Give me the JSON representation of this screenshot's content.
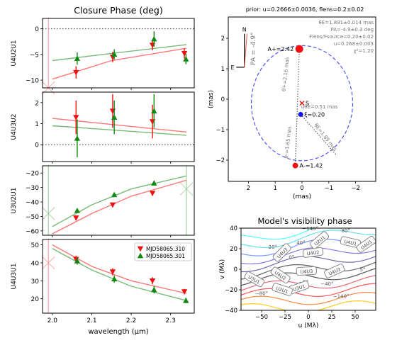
{
  "chart_data": [
    {
      "type": "scatter",
      "title": "Closure Phase (deg)",
      "panel": "U4U2U1",
      "ylabel": "U4U2U1",
      "ylim": [
        -11.5,
        2
      ],
      "xlim": [
        1.975,
        2.36
      ],
      "yticks": [
        0,
        -5,
        -10
      ],
      "xticks": [],
      "reference_line": 0,
      "series": [
        {
          "name": "MJD58065.310",
          "x": [
            2.06,
            2.153,
            2.254,
            2.335
          ],
          "y": [
            -8.5,
            -5.5,
            -3.2,
            -4.8
          ],
          "err": [
            1.2,
            1.0,
            1.0,
            1.0
          ],
          "color": "#ee1111",
          "marker": "triangle-down"
        },
        {
          "name": "MJD58065.301",
          "x": [
            2.063,
            2.157,
            2.258,
            2.339
          ],
          "y": [
            -5.8,
            -5.0,
            -2.0,
            -5.9
          ],
          "err": [
            1.2,
            1.0,
            1.5,
            1.0
          ],
          "color": "#118811",
          "marker": "triangle-up"
        }
      ],
      "models": [
        {
          "x": [
            2.0,
            2.15,
            2.34
          ],
          "y": [
            -9.8,
            -6.2,
            -3.8
          ],
          "color": "#ff7777"
        },
        {
          "x": [
            2.0,
            2.15,
            2.34
          ],
          "y": [
            -6.2,
            -4.8,
            -3.1
          ],
          "color": "#77bb77"
        }
      ],
      "edge_markers": [
        {
          "x": 1.99,
          "y": -11.5,
          "color": "#ff9999"
        }
      ]
    },
    {
      "type": "scatter",
      "panel": "U4U3U2",
      "ylabel": "U4U3U2",
      "ylim": [
        -0.8,
        2.5
      ],
      "xlim": [
        1.975,
        2.36
      ],
      "yticks": [
        2,
        1,
        0
      ],
      "xticks": [],
      "reference_line": 0,
      "series": [
        {
          "name": "MJD58065.310",
          "x": [
            2.06,
            2.153,
            2.254
          ],
          "y": [
            1.3,
            1.6,
            1.1
          ],
          "err": [
            0.8,
            0.8,
            0.8
          ],
          "color": "#ee1111",
          "marker": "triangle-down"
        },
        {
          "name": "MJD58065.301",
          "x": [
            2.063,
            2.157,
            2.258
          ],
          "y": [
            0.3,
            1.3,
            1.6
          ],
          "err": [
            0.9,
            0.8,
            0.8
          ],
          "color": "#118811",
          "marker": "triangle-up"
        }
      ],
      "models": [
        {
          "x": [
            2.0,
            2.34
          ],
          "y": [
            1.25,
            0.6
          ],
          "color": "#ff7777"
        },
        {
          "x": [
            2.0,
            2.34
          ],
          "y": [
            0.9,
            0.45
          ],
          "color": "#77bb77"
        }
      ],
      "edge_markers": []
    },
    {
      "type": "scatter",
      "panel": "U3U2U1",
      "ylabel": "U3U2U1",
      "ylim": [
        -63,
        -15
      ],
      "xlim": [
        1.975,
        2.36
      ],
      "yticks": [
        -20,
        -30,
        -40,
        -50,
        -60
      ],
      "xticks": [],
      "reference_line": null,
      "series": [
        {
          "name": "MJD58065.310",
          "x": [
            2.06,
            2.153,
            2.254
          ],
          "y": [
            -51,
            -42,
            -34
          ],
          "err": [
            1.5,
            1.5,
            1.5
          ],
          "color": "#ee1111",
          "marker": "triangle-down"
        },
        {
          "name": "MJD58065.301",
          "x": [
            2.063,
            2.157,
            2.258
          ],
          "y": [
            -46,
            -35,
            -27
          ],
          "err": [
            1.5,
            1.5,
            1.5
          ],
          "color": "#118811",
          "marker": "triangle-up"
        }
      ],
      "models": [
        {
          "x": [
            2.0,
            2.1,
            2.2,
            2.34
          ],
          "y": [
            -62,
            -48,
            -36,
            -25
          ],
          "color": "#ff7777"
        },
        {
          "x": [
            2.0,
            2.1,
            2.2,
            2.34
          ],
          "y": [
            -57,
            -42,
            -31,
            -22
          ],
          "color": "#77bb77"
        }
      ],
      "edge_markers": [
        {
          "x": 1.99,
          "y": -48,
          "color": "#99cc99"
        },
        {
          "x": 2.34,
          "y": -31,
          "color": "#99cc99"
        }
      ]
    },
    {
      "type": "scatter",
      "panel": "U4U3U1",
      "ylabel": "U4U3U1",
      "ylim": [
        12,
        53
      ],
      "xlim": [
        1.975,
        2.36
      ],
      "yticks": [
        50,
        40,
        30,
        20
      ],
      "xticks": [
        2.0,
        2.1,
        2.2,
        2.3
      ],
      "xlabel": "wavelength (μm)",
      "reference_line": null,
      "legend": {
        "position": "upper right",
        "entries": [
          "MJD58065.310",
          "MJD58065.301"
        ]
      },
      "series": [
        {
          "name": "MJD58065.310",
          "x": [
            2.06,
            2.153,
            2.254,
            2.335
          ],
          "y": [
            42,
            35,
            30,
            24
          ],
          "err": [
            2,
            2,
            2,
            1.5
          ],
          "color": "#ee1111",
          "marker": "triangle-down"
        },
        {
          "name": "MJD58065.301",
          "x": [
            2.063,
            2.157,
            2.258,
            2.339
          ],
          "y": [
            41,
            31,
            25,
            19
          ],
          "err": [
            2,
            2,
            2,
            1.5
          ],
          "color": "#118811",
          "marker": "triangle-up"
        }
      ],
      "models": [
        {
          "x": [
            2.0,
            2.1,
            2.2,
            2.34
          ],
          "y": [
            50,
            38,
            30,
            23
          ],
          "color": "#ff7777"
        },
        {
          "x": [
            2.0,
            2.1,
            2.2,
            2.34
          ],
          "y": [
            48,
            36,
            27,
            19
          ],
          "color": "#77bb77"
        }
      ],
      "edge_markers": [
        {
          "x": 1.99,
          "y": 40,
          "color": "#ff9999"
        }
      ]
    },
    {
      "type": "scatter",
      "title": "prior: u=0.2666±0.0036, flens=0.2±0.02",
      "panel": "astrometry",
      "xlabel": "(mas)",
      "ylabel": "(mas)",
      "xlim": [
        2.75,
        -2.75
      ],
      "ylim": [
        -2.7,
        2.7
      ],
      "xticks": [
        2,
        1,
        0,
        -1,
        -2
      ],
      "yticks": [
        2,
        1,
        0,
        -1,
        -2
      ],
      "annotations": [
        "θE=1.891±0.014 mas",
        "PA=-4.9±0.3 deg",
        "Flens/Fsource=0.20±0.02",
        "u=0.268±0.003",
        "χ²=1.20"
      ],
      "compass": {
        "north": "N",
        "east": "E",
        "pa_label": "PA = -4.9°"
      },
      "einstein_ring_radius": 1.891,
      "points": [
        {
          "name": "A+=2.42",
          "x": 0.1,
          "y": 1.65,
          "color": "#ee1111"
        },
        {
          "name": "A-=1.42",
          "x": 0.25,
          "y": -2.18,
          "color": "#ee1111"
        },
        {
          "name": "S",
          "x": 0.0,
          "y": -0.13,
          "color": "#ee1111",
          "marker": "x"
        },
        {
          "name": "ξ=0.20",
          "x": 0.05,
          "y": -0.5,
          "color": "#1111ee"
        }
      ],
      "labels": [
        "θ+=2.16 mas",
        "θ-=1.65 mas",
        "uθE=0.51 mas",
        "θE=1.89 mas"
      ]
    },
    {
      "type": "contour",
      "title": "Model's visibility phase",
      "panel": "visibility-phase",
      "xlabel": "u (Mλ)",
      "ylabel": "v (Mλ)",
      "xlim": [
        -72,
        72
      ],
      "ylim": [
        -40,
        40
      ],
      "xticks": [
        -50,
        -25,
        0,
        25,
        50
      ],
      "yticks": [
        40,
        20,
        0,
        -20,
        -40
      ],
      "contour_labels": [
        "-140°",
        "80°",
        "40°",
        "20°",
        "0°",
        "5°",
        "-5°",
        "-40°",
        "-80°",
        "-140°"
      ],
      "baseline_labels": [
        "U4U3",
        "U4U2",
        "U3U1",
        "U4U2",
        "U4U1",
        "U2U1",
        "U4U3",
        "U4U2",
        "U3U1",
        "U2U1",
        "U4U1"
      ]
    }
  ]
}
